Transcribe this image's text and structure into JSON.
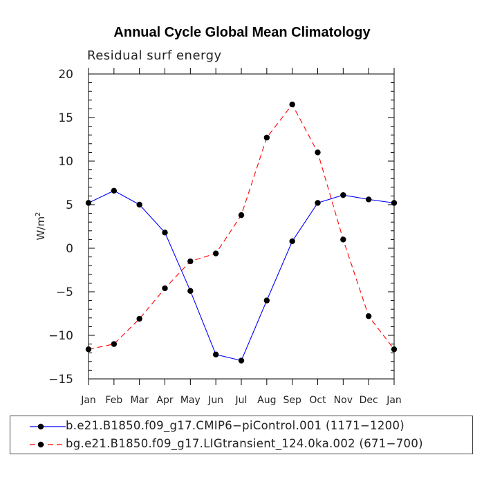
{
  "chart_data": {
    "type": "line",
    "title": "Annual Cycle Global Mean Climatology",
    "subtitle": "Residual surf energy",
    "ylabel": "W/m",
    "ylabel_superscript": "2",
    "xlabel": "",
    "categories": [
      "Jan",
      "Feb",
      "Mar",
      "Apr",
      "May",
      "Jun",
      "Jul",
      "Aug",
      "Sep",
      "Oct",
      "Nov",
      "Dec",
      "Jan"
    ],
    "ylim": [
      -15,
      20
    ],
    "yticks": [
      -15,
      -10,
      -5,
      0,
      5,
      10,
      15,
      20
    ],
    "ytick_labels": [
      "−15",
      "−10",
      "−5",
      "0",
      "5",
      "10",
      "15",
      "20"
    ],
    "series": [
      {
        "name": "b.e21.B1850.f09_g17.CMIP6-piControl.001 (1171-1200)",
        "label": "b.e21.B1850.f09_g17.CMIP6−piControl.001 (1171−1200)",
        "color": "#0000ff",
        "dash": "solid",
        "values": [
          5.2,
          6.6,
          5.0,
          1.8,
          -4.9,
          -12.2,
          -12.9,
          -6.0,
          0.8,
          5.2,
          6.1,
          5.6,
          5.2
        ]
      },
      {
        "name": "bg.e21.B1850.f09_g17.LIGtransient_124.0ka.002 (671-700)",
        "label": "bg.e21.B1850.f09_g17.LIGtransient_124.0ka.002 (671−700)",
        "color": "#ff0000",
        "dash": "dashed",
        "values": [
          -11.6,
          -11.0,
          -8.1,
          -4.6,
          -1.5,
          -0.6,
          3.8,
          12.7,
          16.5,
          11.0,
          1.0,
          -7.8,
          -11.6
        ]
      }
    ],
    "legend": "bottom",
    "grid": false
  }
}
